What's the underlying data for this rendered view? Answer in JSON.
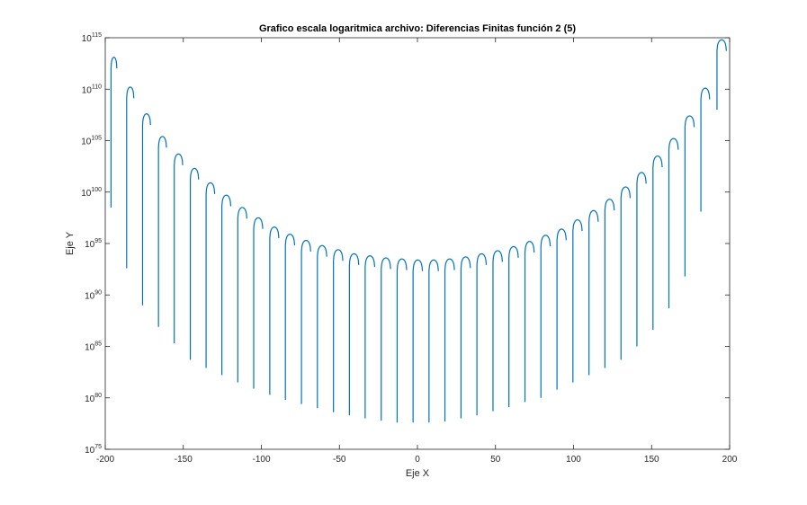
{
  "chart_data": {
    "type": "line",
    "title": "Grafico escala logaritmica archivo: Diferencias Finitas función 2 (5)",
    "xlabel": "Eje X",
    "ylabel": "Eje Y",
    "xlim": [
      -200,
      200
    ],
    "ylim_log10": [
      75,
      115
    ],
    "yscale": "log",
    "grid": false,
    "line_color": "#0072BD",
    "x_ticks": [
      "-200",
      "-150",
      "-100",
      "-50",
      "0",
      "50",
      "100",
      "150",
      "200"
    ],
    "y_ticks": [
      {
        "base": "10",
        "exp": "75"
      },
      {
        "base": "10",
        "exp": "80"
      },
      {
        "base": "10",
        "exp": "85"
      },
      {
        "base": "10",
        "exp": "90"
      },
      {
        "base": "10",
        "exp": "95"
      },
      {
        "base": "10",
        "exp": "100"
      },
      {
        "base": "10",
        "exp": "105"
      },
      {
        "base": "10",
        "exp": "110"
      },
      {
        "base": "10",
        "exp": "115"
      }
    ],
    "series": [
      {
        "description": "oscillating magnitude plotted on log scale; each arch is one lobe between near-zero dips",
        "arches": [
          {
            "x_start": -196.3,
            "x_end": -192.6,
            "peak_log10": 113.1,
            "dip_log10": 98.5
          },
          {
            "x_start": -186.3,
            "x_end": -181.7,
            "peak_log10": 110.2,
            "dip_log10": 92.6
          },
          {
            "x_start": -176.1,
            "x_end": -171.0,
            "peak_log10": 107.6,
            "dip_log10": 89.0
          },
          {
            "x_start": -165.9,
            "x_end": -160.8,
            "peak_log10": 105.4,
            "dip_log10": 86.9
          },
          {
            "x_start": -155.8,
            "x_end": -150.4,
            "peak_log10": 103.7,
            "dip_log10": 85.3
          },
          {
            "x_start": -145.5,
            "x_end": -140.2,
            "peak_log10": 102.3,
            "dip_log10": 83.7
          },
          {
            "x_start": -135.4,
            "x_end": -129.9,
            "peak_log10": 100.9,
            "dip_log10": 82.9
          },
          {
            "x_start": -125.3,
            "x_end": -119.6,
            "peak_log10": 99.7,
            "dip_log10": 82.2
          },
          {
            "x_start": -115.1,
            "x_end": -109.3,
            "peak_log10": 98.5,
            "dip_log10": 81.5
          },
          {
            "x_start": -104.9,
            "x_end": -99.1,
            "peak_log10": 97.5,
            "dip_log10": 80.9
          },
          {
            "x_start": -94.6,
            "x_end": -88.8,
            "peak_log10": 96.6,
            "dip_log10": 80.3
          },
          {
            "x_start": -84.6,
            "x_end": -78.7,
            "peak_log10": 95.9,
            "dip_log10": 79.8
          },
          {
            "x_start": -74.3,
            "x_end": -68.4,
            "peak_log10": 95.3,
            "dip_log10": 79.4
          },
          {
            "x_start": -64.1,
            "x_end": -58.1,
            "peak_log10": 94.8,
            "dip_log10": 79.0
          },
          {
            "x_start": -53.8,
            "x_end": -47.8,
            "peak_log10": 94.4,
            "dip_log10": 78.6
          },
          {
            "x_start": -43.6,
            "x_end": -37.6,
            "peak_log10": 94.0,
            "dip_log10": 78.3
          },
          {
            "x_start": -33.5,
            "x_end": -27.4,
            "peak_log10": 93.8,
            "dip_log10": 78.0
          },
          {
            "x_start": -23.2,
            "x_end": -17.2,
            "peak_log10": 93.6,
            "dip_log10": 77.8
          },
          {
            "x_start": -13.0,
            "x_end": -6.9,
            "peak_log10": 93.5,
            "dip_log10": 77.6
          },
          {
            "x_start": -2.8,
            "x_end": 3.2,
            "peak_log10": 93.4,
            "dip_log10": 77.6
          },
          {
            "x_start": 7.4,
            "x_end": 13.4,
            "peak_log10": 93.4,
            "dip_log10": 77.6
          },
          {
            "x_start": 17.6,
            "x_end": 23.7,
            "peak_log10": 93.5,
            "dip_log10": 77.7
          },
          {
            "x_start": 27.9,
            "x_end": 33.9,
            "peak_log10": 93.7,
            "dip_log10": 78.0
          },
          {
            "x_start": 38.1,
            "x_end": 44.1,
            "peak_log10": 94.0,
            "dip_log10": 78.3
          },
          {
            "x_start": 48.4,
            "x_end": 54.4,
            "peak_log10": 94.3,
            "dip_log10": 78.7
          },
          {
            "x_start": 58.6,
            "x_end": 64.6,
            "peak_log10": 94.7,
            "dip_log10": 79.1
          },
          {
            "x_start": 68.9,
            "x_end": 74.8,
            "peak_log10": 95.2,
            "dip_log10": 79.6
          },
          {
            "x_start": 79.1,
            "x_end": 85.1,
            "peak_log10": 95.8,
            "dip_log10": 80.0
          },
          {
            "x_start": 89.4,
            "x_end": 95.3,
            "peak_log10": 96.4,
            "dip_log10": 80.8
          },
          {
            "x_start": 99.6,
            "x_end": 105.5,
            "peak_log10": 97.3,
            "dip_log10": 81.5
          },
          {
            "x_start": 109.9,
            "x_end": 115.8,
            "peak_log10": 98.2,
            "dip_log10": 82.2
          },
          {
            "x_start": 120.1,
            "x_end": 126.1,
            "peak_log10": 99.3,
            "dip_log10": 82.9
          },
          {
            "x_start": 130.4,
            "x_end": 136.3,
            "peak_log10": 100.5,
            "dip_log10": 83.7
          },
          {
            "x_start": 140.6,
            "x_end": 146.5,
            "peak_log10": 101.9,
            "dip_log10": 85.0
          },
          {
            "x_start": 150.9,
            "x_end": 156.8,
            "peak_log10": 103.5,
            "dip_log10": 86.6
          },
          {
            "x_start": 161.1,
            "x_end": 167.1,
            "peak_log10": 105.2,
            "dip_log10": 88.7
          },
          {
            "x_start": 171.4,
            "x_end": 177.3,
            "peak_log10": 107.4,
            "dip_log10": 91.8
          },
          {
            "x_start": 181.6,
            "x_end": 187.2,
            "peak_log10": 110.1,
            "dip_log10": 98.1
          },
          {
            "x_start": 191.9,
            "x_end": 197.9,
            "peak_log10": 114.8,
            "dip_log10": 108.0
          }
        ]
      }
    ]
  }
}
